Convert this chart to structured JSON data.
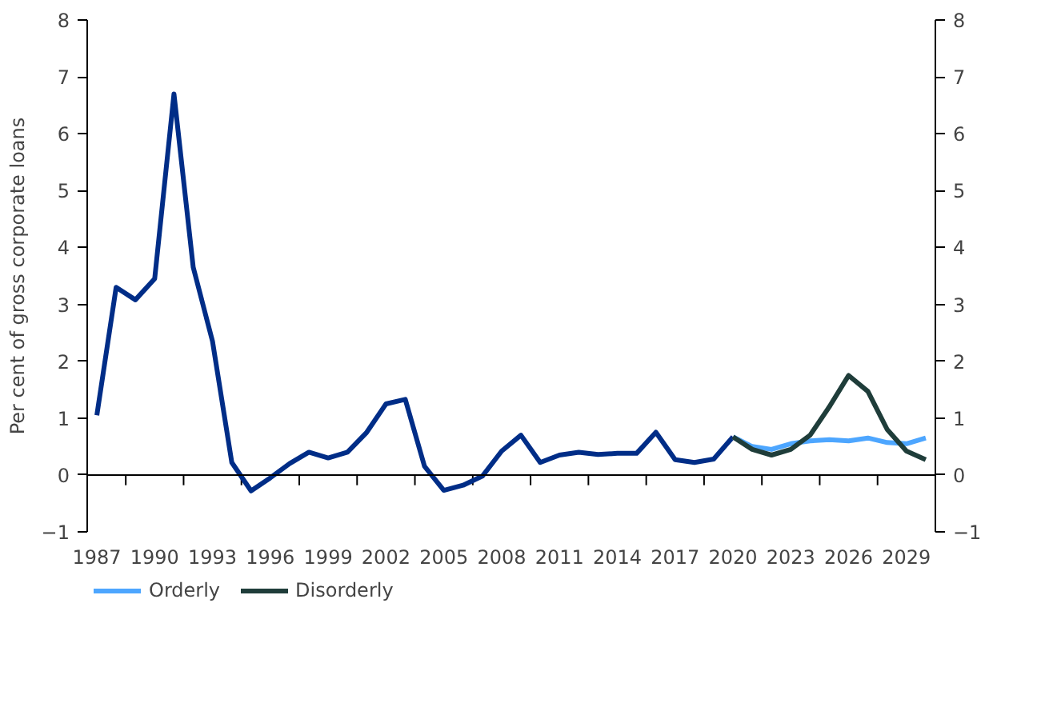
{
  "chart_data": {
    "type": "line",
    "ylabel": "Per cent of gross corporate loans",
    "xlim": [
      1986.5,
      2030.5
    ],
    "xticks": [
      1987,
      1990,
      1993,
      1996,
      1999,
      2002,
      2005,
      2008,
      2011,
      2014,
      2017,
      2020,
      2023,
      2026,
      2029
    ],
    "ylim": [
      -1,
      8
    ],
    "yticks": [
      -1,
      0,
      1,
      2,
      3,
      4,
      5,
      6,
      7,
      8
    ],
    "y2lim": [
      -1,
      8
    ],
    "y2ticks": [
      -1,
      0,
      1,
      2,
      3,
      4,
      5,
      6,
      7,
      8
    ],
    "grid": false,
    "legend": "bottom",
    "ref_lines": [
      {
        "axis": "y",
        "value": 0,
        "color": "#000000"
      }
    ],
    "series": [
      {
        "color": "#002d87",
        "x": [
          1987,
          1988,
          1989,
          1990,
          1991,
          1992,
          1993,
          1994,
          1995,
          1996,
          1997,
          1998,
          1999,
          2000,
          2001,
          2002,
          2003,
          2004,
          2005,
          2006,
          2007,
          2008,
          2009,
          2010,
          2011,
          2012,
          2013,
          2014,
          2015,
          2016,
          2017,
          2018,
          2019,
          2020
        ],
        "values": [
          1.05,
          3.3,
          3.08,
          3.45,
          6.7,
          3.65,
          2.35,
          0.22,
          -0.28,
          -0.05,
          0.2,
          0.4,
          0.3,
          0.4,
          0.75,
          1.25,
          1.33,
          0.15,
          -0.27,
          -0.18,
          -0.02,
          0.42,
          0.7,
          0.22,
          0.35,
          0.4,
          0.36,
          0.38,
          0.38,
          0.75,
          0.27,
          0.22,
          0.28,
          0.67
        ]
      },
      {
        "name": "Orderly",
        "color": "#4da6ff",
        "x": [
          2020,
          2021,
          2022,
          2023,
          2024,
          2025,
          2026,
          2027,
          2028,
          2029,
          2030
        ],
        "values": [
          0.67,
          0.5,
          0.45,
          0.55,
          0.6,
          0.62,
          0.6,
          0.65,
          0.57,
          0.55,
          0.65
        ]
      },
      {
        "name": "Disorderly",
        "color": "#1f3d3a",
        "x": [
          2020,
          2021,
          2022,
          2023,
          2024,
          2025,
          2026,
          2027,
          2028,
          2029,
          2030
        ],
        "values": [
          0.67,
          0.45,
          0.35,
          0.45,
          0.7,
          1.2,
          1.75,
          1.47,
          0.8,
          0.42,
          0.27
        ]
      }
    ]
  }
}
